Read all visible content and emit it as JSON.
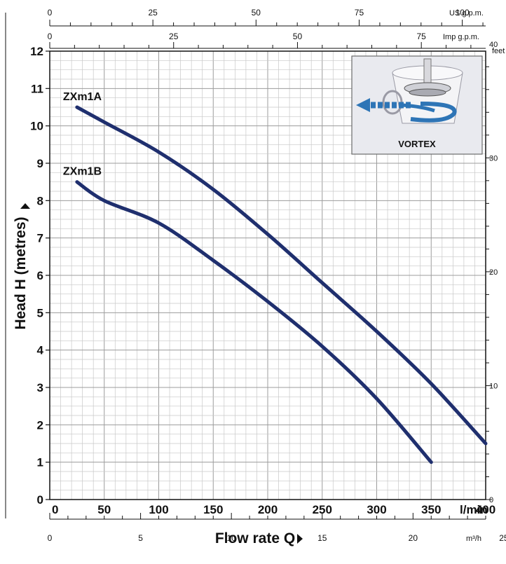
{
  "chart_data": {
    "type": "line",
    "xlabel": "Flow rate Q",
    "ylabel": "Head H (metres)",
    "x_unit": "l/min",
    "xlim": [
      0,
      400
    ],
    "ylim": [
      0,
      12
    ],
    "x_ticks": [
      0,
      50,
      100,
      150,
      200,
      250,
      300,
      350,
      400
    ],
    "y_ticks": [
      0,
      1,
      2,
      3,
      4,
      5,
      6,
      7,
      8,
      9,
      10,
      11,
      12
    ],
    "grid": true,
    "series": [
      {
        "name": "ZXm1A",
        "x": [
          25,
          50,
          100,
          150,
          200,
          250,
          300,
          350,
          400
        ],
        "y": [
          10.5,
          10.1,
          9.3,
          8.3,
          7.1,
          5.8,
          4.5,
          3.1,
          1.5
        ]
      },
      {
        "name": "ZXm1B",
        "x": [
          25,
          50,
          100,
          150,
          200,
          250,
          300,
          350
        ],
        "y": [
          8.5,
          8.0,
          7.4,
          6.4,
          5.3,
          4.1,
          2.7,
          1.0
        ]
      }
    ],
    "secondary_axes": {
      "us_gpm": {
        "unit": "US g.p.m.",
        "ticks": [
          0,
          25,
          50,
          75,
          100
        ]
      },
      "imp_gpm": {
        "unit": "Imp g.p.m.",
        "ticks": [
          0,
          25,
          50,
          75
        ]
      },
      "m3h": {
        "unit": "m³/h",
        "ticks": [
          0,
          5,
          10,
          15,
          20,
          25
        ]
      },
      "feet": {
        "unit": "feet",
        "ticks": [
          0,
          10,
          20,
          30,
          40
        ]
      }
    },
    "inset": {
      "label": "VORTEX",
      "icon": "vortex-impeller-icon"
    },
    "colors": {
      "curve": "#1f2f6e",
      "grid": "#c8c8c8",
      "arrow": "#2e75b6"
    }
  }
}
